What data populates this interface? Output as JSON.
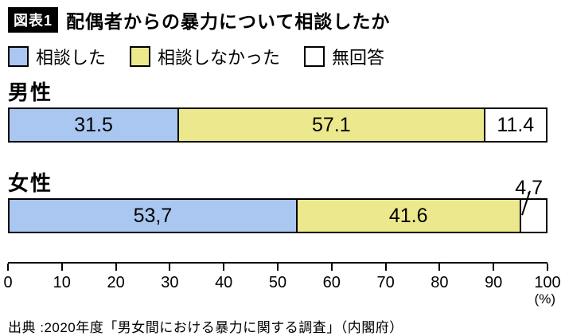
{
  "badge": "図表1",
  "title": "配偶者からの暴力について相談したか",
  "source": "出典 :2020年度「男女間における暴力に関する調査」（内閣府）",
  "chart_data": {
    "type": "bar",
    "orientation": "horizontal",
    "stacked": true,
    "title": "配偶者からの暴力について相談したか",
    "categories": [
      "男性",
      "女性"
    ],
    "series": [
      {
        "name": "相談した",
        "color": "#a9c7f0",
        "values": [
          31.5,
          53.7
        ]
      },
      {
        "name": "相談しなかった",
        "color": "#ece88d",
        "values": [
          57.1,
          41.6
        ]
      },
      {
        "name": "無回答",
        "color": "#ffffff",
        "values": [
          11.4,
          4.7
        ]
      }
    ],
    "value_labels": [
      [
        "31.5",
        "57.1",
        "11.4"
      ],
      [
        "53,7",
        "41.6",
        "4.7"
      ]
    ],
    "outside_labels": [
      [
        false,
        false,
        false
      ],
      [
        false,
        false,
        true
      ]
    ],
    "xlim": [
      0,
      100
    ],
    "x_ticks": [
      0,
      10,
      20,
      30,
      40,
      50,
      60,
      70,
      80,
      90,
      100
    ],
    "unit": "(%)",
    "legend_position": "top",
    "grid": false
  }
}
